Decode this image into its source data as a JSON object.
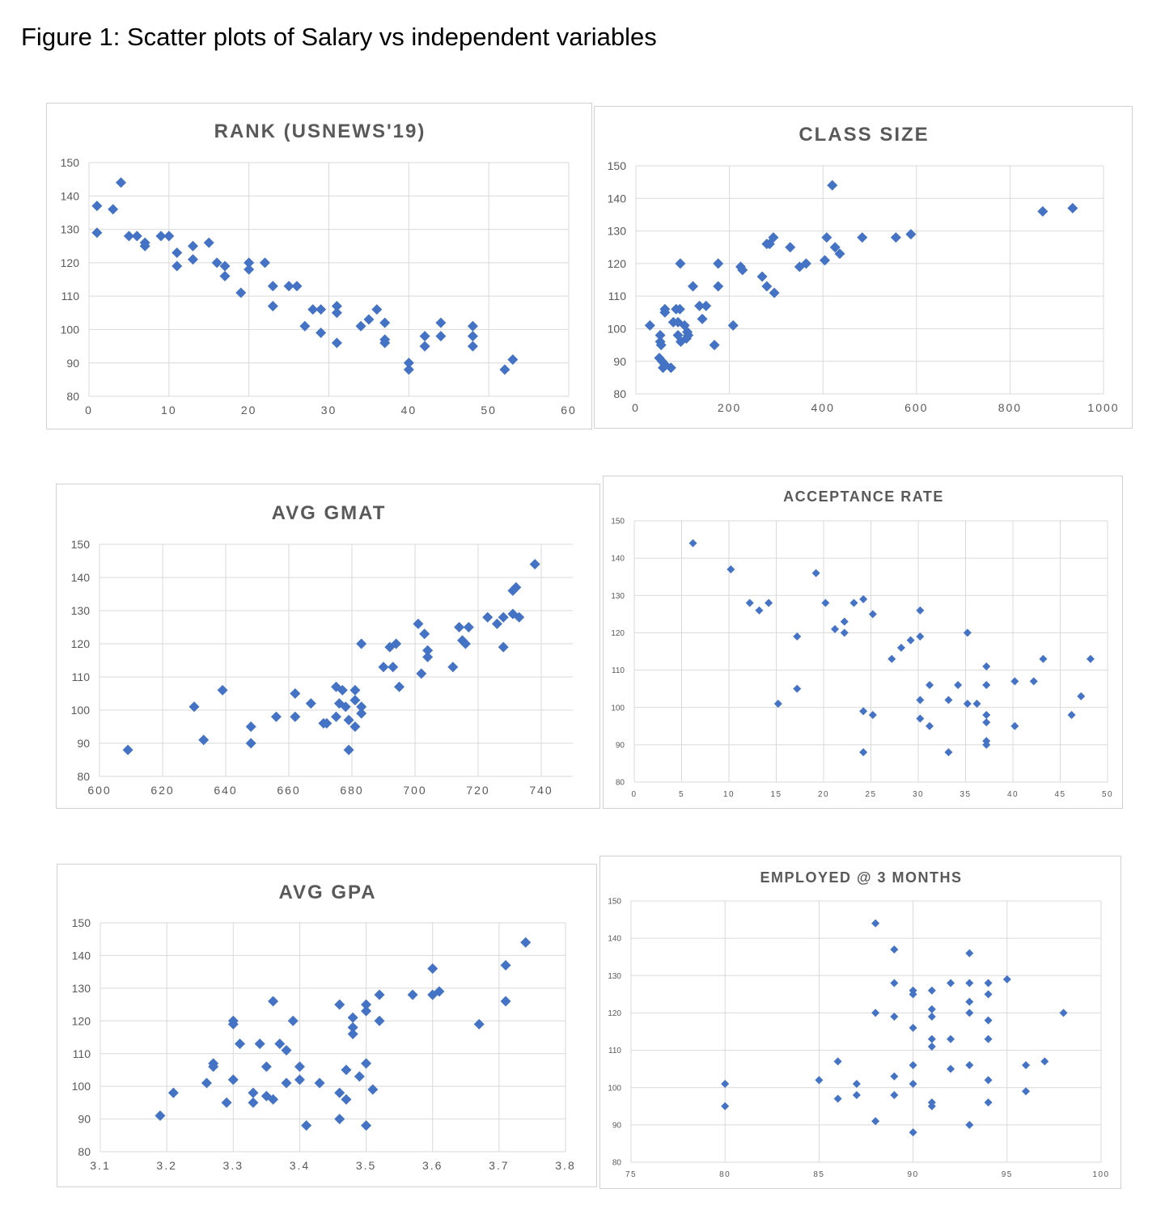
{
  "figure_title": "Figure 1: Scatter plots of Salary vs independent variables",
  "chart_data": [
    {
      "type": "scatter",
      "title": "RANK (USNEWS'19)",
      "xlabel": "",
      "ylabel": "",
      "xlim": [
        0,
        60
      ],
      "ylim": [
        80,
        150
      ],
      "x_ticks": [
        "0",
        "10",
        "20",
        "30",
        "40",
        "50",
        "60"
      ],
      "y_ticks": [
        "80",
        "90",
        "100",
        "110",
        "120",
        "130",
        "140",
        "150"
      ],
      "grid": true,
      "marker_color": "#4472c4",
      "points": [
        [
          1,
          137
        ],
        [
          1,
          129
        ],
        [
          3,
          136
        ],
        [
          4,
          144
        ],
        [
          5,
          128
        ],
        [
          6,
          128
        ],
        [
          7,
          126
        ],
        [
          7,
          125
        ],
        [
          9,
          128
        ],
        [
          10,
          128
        ],
        [
          11,
          123
        ],
        [
          11,
          119
        ],
        [
          13,
          125
        ],
        [
          13,
          121
        ],
        [
          15,
          126
        ],
        [
          16,
          120
        ],
        [
          17,
          119
        ],
        [
          17,
          116
        ],
        [
          19,
          111
        ],
        [
          20,
          120
        ],
        [
          20,
          118
        ],
        [
          22,
          120
        ],
        [
          23,
          113
        ],
        [
          23,
          107
        ],
        [
          25,
          113
        ],
        [
          26,
          113
        ],
        [
          27,
          101
        ],
        [
          28,
          106
        ],
        [
          29,
          106
        ],
        [
          29,
          99
        ],
        [
          31,
          107
        ],
        [
          31,
          105
        ],
        [
          31,
          96
        ],
        [
          34,
          101
        ],
        [
          35,
          103
        ],
        [
          36,
          106
        ],
        [
          37,
          102
        ],
        [
          37,
          97
        ],
        [
          37,
          96
        ],
        [
          40,
          90
        ],
        [
          40,
          88
        ],
        [
          42,
          98
        ],
        [
          42,
          95
        ],
        [
          44,
          102
        ],
        [
          44,
          98
        ],
        [
          48,
          101
        ],
        [
          48,
          98
        ],
        [
          48,
          95
        ],
        [
          52,
          88
        ],
        [
          53,
          91
        ]
      ]
    },
    {
      "type": "scatter",
      "title": "CLASS SIZE",
      "xlabel": "",
      "ylabel": "",
      "xlim": [
        0,
        1000
      ],
      "ylim": [
        80,
        150
      ],
      "x_ticks": [
        "0",
        "200",
        "400",
        "600",
        "800",
        "1000"
      ],
      "y_ticks": [
        "80",
        "90",
        "100",
        "110",
        "120",
        "130",
        "140",
        "150"
      ],
      "grid": true,
      "marker_color": "#4472c4",
      "points": [
        [
          30,
          101
        ],
        [
          52,
          98
        ],
        [
          52,
          96
        ],
        [
          54,
          95
        ],
        [
          50,
          91
        ],
        [
          56,
          90
        ],
        [
          58,
          88
        ],
        [
          62,
          89
        ],
        [
          62,
          106
        ],
        [
          62,
          105
        ],
        [
          75,
          88
        ],
        [
          80,
          102
        ],
        [
          86,
          106
        ],
        [
          90,
          102
        ],
        [
          90,
          98
        ],
        [
          94,
          106
        ],
        [
          95,
          120
        ],
        [
          96,
          96
        ],
        [
          104,
          101
        ],
        [
          108,
          97
        ],
        [
          110,
          99
        ],
        [
          112,
          98
        ],
        [
          122,
          113
        ],
        [
          136,
          107
        ],
        [
          142,
          103
        ],
        [
          150,
          107
        ],
        [
          168,
          95
        ],
        [
          176,
          120
        ],
        [
          176,
          113
        ],
        [
          208,
          101
        ],
        [
          224,
          119
        ],
        [
          228,
          118
        ],
        [
          270,
          116
        ],
        [
          280,
          126
        ],
        [
          280,
          113
        ],
        [
          286,
          126
        ],
        [
          294,
          128
        ],
        [
          296,
          111
        ],
        [
          330,
          125
        ],
        [
          350,
          119
        ],
        [
          364,
          120
        ],
        [
          404,
          121
        ],
        [
          408,
          128
        ],
        [
          420,
          144
        ],
        [
          426,
          125
        ],
        [
          436,
          123
        ],
        [
          484,
          128
        ],
        [
          556,
          128
        ],
        [
          588,
          129
        ],
        [
          870,
          136
        ],
        [
          934,
          137
        ]
      ]
    },
    {
      "type": "scatter",
      "title": "AVG GMAT",
      "xlabel": "",
      "ylabel": "",
      "xlim": [
        600,
        750
      ],
      "ylim": [
        80,
        150
      ],
      "x_ticks": [
        "600",
        "620",
        "640",
        "660",
        "680",
        "700",
        "720",
        "740"
      ],
      "y_ticks": [
        "80",
        "90",
        "100",
        "110",
        "120",
        "130",
        "140",
        "150"
      ],
      "grid": true,
      "marker_color": "#4472c4",
      "points": [
        [
          609,
          88
        ],
        [
          630,
          101
        ],
        [
          633,
          91
        ],
        [
          639,
          106
        ],
        [
          648,
          95
        ],
        [
          648,
          90
        ],
        [
          656,
          98
        ],
        [
          662,
          105
        ],
        [
          662,
          98
        ],
        [
          667,
          102
        ],
        [
          671,
          96
        ],
        [
          672,
          96
        ],
        [
          675,
          107
        ],
        [
          675,
          98
        ],
        [
          676,
          102
        ],
        [
          677,
          106
        ],
        [
          678,
          101
        ],
        [
          679,
          97
        ],
        [
          679,
          88
        ],
        [
          681,
          106
        ],
        [
          681,
          103
        ],
        [
          681,
          95
        ],
        [
          683,
          120
        ],
        [
          683,
          101
        ],
        [
          683,
          99
        ],
        [
          690,
          113
        ],
        [
          692,
          119
        ],
        [
          693,
          113
        ],
        [
          694,
          120
        ],
        [
          695,
          107
        ],
        [
          701,
          126
        ],
        [
          702,
          111
        ],
        [
          703,
          123
        ],
        [
          704,
          118
        ],
        [
          704,
          116
        ],
        [
          712,
          113
        ],
        [
          714,
          125
        ],
        [
          715,
          121
        ],
        [
          716,
          120
        ],
        [
          717,
          125
        ],
        [
          723,
          128
        ],
        [
          726,
          126
        ],
        [
          728,
          128
        ],
        [
          728,
          119
        ],
        [
          731,
          129
        ],
        [
          731,
          136
        ],
        [
          732,
          137
        ],
        [
          733,
          128
        ],
        [
          738,
          144
        ]
      ]
    },
    {
      "type": "scatter",
      "title": "ACCEPTANCE RATE",
      "xlabel": "",
      "ylabel": "",
      "xlim": [
        0,
        50
      ],
      "ylim": [
        80,
        150
      ],
      "x_ticks": [
        "0",
        "5",
        "10",
        "15",
        "20",
        "25",
        "30",
        "35",
        "40",
        "45",
        "50"
      ],
      "y_ticks": [
        "80",
        "90",
        "100",
        "110",
        "120",
        "130",
        "140",
        "150"
      ],
      "grid": true,
      "marker_color": "#4472c4",
      "points": [
        [
          6.2,
          144
        ],
        [
          10.2,
          137
        ],
        [
          12.2,
          128
        ],
        [
          13.2,
          126
        ],
        [
          14.2,
          128
        ],
        [
          15.2,
          101
        ],
        [
          17.2,
          119
        ],
        [
          17.2,
          105
        ],
        [
          19.2,
          136
        ],
        [
          20.2,
          128
        ],
        [
          21.2,
          121
        ],
        [
          22.2,
          123
        ],
        [
          22.2,
          120
        ],
        [
          23.2,
          128
        ],
        [
          24.2,
          129
        ],
        [
          24.2,
          99
        ],
        [
          24.2,
          88
        ],
        [
          25.2,
          125
        ],
        [
          25.2,
          98
        ],
        [
          27.2,
          113
        ],
        [
          28.2,
          116
        ],
        [
          29.2,
          118
        ],
        [
          30.2,
          126
        ],
        [
          30.2,
          119
        ],
        [
          30.2,
          102
        ],
        [
          30.2,
          97
        ],
        [
          31.2,
          106
        ],
        [
          31.2,
          95
        ],
        [
          33.2,
          102
        ],
        [
          33.2,
          88
        ],
        [
          34.2,
          106
        ],
        [
          35.2,
          120
        ],
        [
          35.2,
          101
        ],
        [
          36.2,
          101
        ],
        [
          37.2,
          111
        ],
        [
          37.2,
          106
        ],
        [
          37.2,
          98
        ],
        [
          37.2,
          96
        ],
        [
          37.2,
          91
        ],
        [
          37.2,
          90
        ],
        [
          40.2,
          107
        ],
        [
          40.2,
          95
        ],
        [
          42.2,
          107
        ],
        [
          43.2,
          113
        ],
        [
          46.2,
          98
        ],
        [
          47.2,
          103
        ],
        [
          48.2,
          113
        ]
      ]
    },
    {
      "type": "scatter",
      "title": "AVG GPA",
      "xlabel": "",
      "ylabel": "",
      "xlim": [
        3.1,
        3.8
      ],
      "ylim": [
        80,
        150
      ],
      "x_ticks": [
        "3.1",
        "3.2",
        "3.3",
        "3.4",
        "3.5",
        "3.6",
        "3.7",
        "3.8"
      ],
      "y_ticks": [
        "80",
        "90",
        "100",
        "110",
        "120",
        "130",
        "140",
        "150"
      ],
      "grid": true,
      "marker_color": "#4472c4",
      "points": [
        [
          3.19,
          91
        ],
        [
          3.21,
          98
        ],
        [
          3.26,
          101
        ],
        [
          3.27,
          107
        ],
        [
          3.27,
          106
        ],
        [
          3.29,
          95
        ],
        [
          3.3,
          120
        ],
        [
          3.3,
          119
        ],
        [
          3.3,
          102
        ],
        [
          3.31,
          113
        ],
        [
          3.33,
          98
        ],
        [
          3.33,
          95
        ],
        [
          3.34,
          113
        ],
        [
          3.35,
          106
        ],
        [
          3.35,
          97
        ],
        [
          3.36,
          126
        ],
        [
          3.36,
          96
        ],
        [
          3.37,
          113
        ],
        [
          3.38,
          111
        ],
        [
          3.38,
          101
        ],
        [
          3.39,
          120
        ],
        [
          3.4,
          106
        ],
        [
          3.4,
          102
        ],
        [
          3.41,
          88
        ],
        [
          3.43,
          101
        ],
        [
          3.46,
          125
        ],
        [
          3.46,
          98
        ],
        [
          3.46,
          90
        ],
        [
          3.47,
          105
        ],
        [
          3.47,
          96
        ],
        [
          3.48,
          121
        ],
        [
          3.48,
          118
        ],
        [
          3.48,
          116
        ],
        [
          3.49,
          103
        ],
        [
          3.5,
          125
        ],
        [
          3.5,
          123
        ],
        [
          3.5,
          107
        ],
        [
          3.5,
          88
        ],
        [
          3.51,
          99
        ],
        [
          3.52,
          128
        ],
        [
          3.52,
          120
        ],
        [
          3.57,
          128
        ],
        [
          3.6,
          136
        ],
        [
          3.6,
          128
        ],
        [
          3.61,
          129
        ],
        [
          3.67,
          119
        ],
        [
          3.71,
          137
        ],
        [
          3.71,
          126
        ],
        [
          3.74,
          144
        ]
      ]
    },
    {
      "type": "scatter",
      "title": "EMPLOYED @ 3 MONTHS",
      "xlabel": "",
      "ylabel": "",
      "xlim": [
        75,
        100
      ],
      "ylim": [
        80,
        150
      ],
      "x_ticks": [
        "75",
        "80",
        "85",
        "90",
        "95",
        "100"
      ],
      "y_ticks": [
        "80",
        "90",
        "100",
        "110",
        "120",
        "130",
        "140",
        "150"
      ],
      "grid": true,
      "marker_color": "#4472c4",
      "points": [
        [
          80,
          101
        ],
        [
          80,
          95
        ],
        [
          85,
          102
        ],
        [
          86,
          107
        ],
        [
          86,
          97
        ],
        [
          87,
          101
        ],
        [
          87,
          98
        ],
        [
          88,
          144
        ],
        [
          88,
          120
        ],
        [
          88,
          91
        ],
        [
          89,
          137
        ],
        [
          89,
          128
        ],
        [
          89,
          119
        ],
        [
          89,
          103
        ],
        [
          89,
          98
        ],
        [
          90,
          126
        ],
        [
          90,
          125
        ],
        [
          90,
          116
        ],
        [
          90,
          106
        ],
        [
          90,
          101
        ],
        [
          90,
          88
        ],
        [
          91,
          126
        ],
        [
          91,
          121
        ],
        [
          91,
          119
        ],
        [
          91,
          113
        ],
        [
          91,
          111
        ],
        [
          91,
          96
        ],
        [
          91,
          95
        ],
        [
          92,
          128
        ],
        [
          92,
          113
        ],
        [
          92,
          105
        ],
        [
          93,
          136
        ],
        [
          93,
          128
        ],
        [
          93,
          123
        ],
        [
          93,
          120
        ],
        [
          93,
          106
        ],
        [
          93,
          90
        ],
        [
          94,
          128
        ],
        [
          94,
          125
        ],
        [
          94,
          118
        ],
        [
          94,
          113
        ],
        [
          94,
          102
        ],
        [
          94,
          96
        ],
        [
          95,
          129
        ],
        [
          96,
          106
        ],
        [
          96,
          99
        ],
        [
          97,
          107
        ],
        [
          98,
          120
        ]
      ]
    }
  ]
}
